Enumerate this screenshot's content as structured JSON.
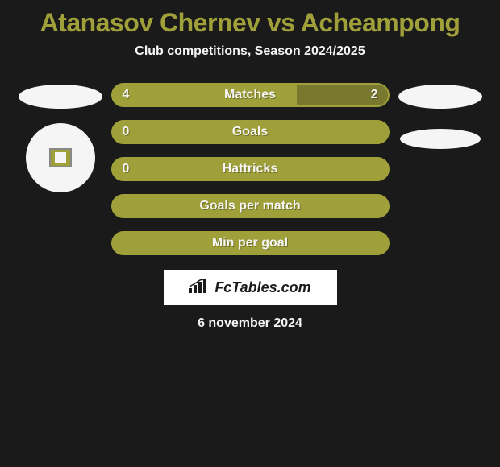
{
  "title": "Atanasov Chernev vs Acheampong",
  "subtitle": "Club competitions, Season 2024/2025",
  "date": "6 november 2024",
  "brand": "FcTables.com",
  "colors": {
    "accent": "#a0a03a",
    "accent_fill": "#a0a03a",
    "right_fill": "#78782e",
    "text": "#f5f5f5",
    "background": "#1a1a1a",
    "white": "#ffffff"
  },
  "rows": [
    {
      "label": "Matches",
      "left_val": "4",
      "right_val": "2",
      "left_pct": 66.7,
      "right_pct": 33.3,
      "show_vals": true,
      "left_color": "#a0a03a",
      "right_color": "#78782e"
    },
    {
      "label": "Goals",
      "left_val": "0",
      "right_val": "",
      "left_pct": 100,
      "right_pct": 0,
      "show_vals": true,
      "left_color": "#a0a03a",
      "right_color": "#78782e"
    },
    {
      "label": "Hattricks",
      "left_val": "0",
      "right_val": "",
      "left_pct": 100,
      "right_pct": 0,
      "show_vals": true,
      "left_color": "#a0a03a",
      "right_color": "#78782e"
    },
    {
      "label": "Goals per match",
      "left_val": "",
      "right_val": "",
      "left_pct": 100,
      "right_pct": 0,
      "show_vals": false,
      "left_color": "#a0a03a",
      "right_color": "#78782e"
    },
    {
      "label": "Min per goal",
      "left_val": "",
      "right_val": "",
      "left_pct": 100,
      "right_pct": 0,
      "show_vals": false,
      "left_color": "#a0a03a",
      "right_color": "#78782e"
    }
  ]
}
